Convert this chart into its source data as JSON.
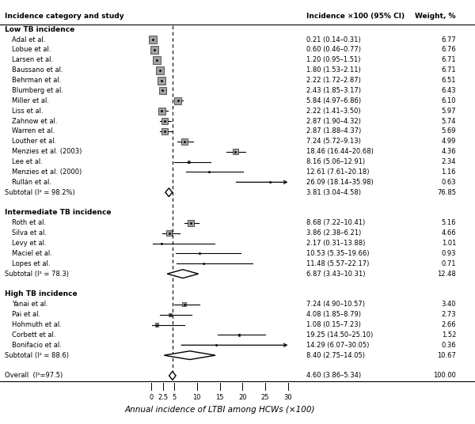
{
  "title_left": "Incidence category and study",
  "title_right1": "Incidence ×100 (95% CI)",
  "title_right2": "Weight, %",
  "xlabel": "Annual incidence of LTBI among HCWs (×100)",
  "dashed_line_x": 4.6,
  "xlim": [
    -2,
    32
  ],
  "xtick_positions": [
    0,
    2.5,
    5,
    10,
    15,
    20,
    25,
    30
  ],
  "xtick_labels": [
    "0",
    "2.5",
    "5",
    "10",
    "15",
    "20",
    "25",
    "30"
  ],
  "groups": [
    {
      "label": "Low TB incidence",
      "studies": [
        {
          "name": "Adal et al.",
          "est": 0.21,
          "lo": 0.14,
          "hi": 0.31,
          "weight": 6.77,
          "ci_str": "0.21 (0.14–0.31)",
          "w_str": "6.77",
          "is_subtotal": false,
          "arrow": false
        },
        {
          "name": "Lobue et al.",
          "est": 0.6,
          "lo": 0.46,
          "hi": 0.77,
          "weight": 6.76,
          "ci_str": "0.60 (0.46–0.77)",
          "w_str": "6.76",
          "is_subtotal": false,
          "arrow": false
        },
        {
          "name": "Larsen et al.",
          "est": 1.2,
          "lo": 0.95,
          "hi": 1.51,
          "weight": 6.71,
          "ci_str": "1.20 (0.95–1.51)",
          "w_str": "6.71",
          "is_subtotal": false,
          "arrow": false
        },
        {
          "name": "Baussano et al.",
          "est": 1.8,
          "lo": 1.53,
          "hi": 2.11,
          "weight": 6.71,
          "ci_str": "1.80 (1.53–2.11)",
          "w_str": "6.71",
          "is_subtotal": false,
          "arrow": false
        },
        {
          "name": "Behrman et al.",
          "est": 2.22,
          "lo": 1.72,
          "hi": 2.87,
          "weight": 6.51,
          "ci_str": "2.22 (1.72–2.87)",
          "w_str": "6.51",
          "is_subtotal": false,
          "arrow": false
        },
        {
          "name": "Blumberg et al.",
          "est": 2.43,
          "lo": 1.85,
          "hi": 3.17,
          "weight": 6.43,
          "ci_str": "2.43 (1.85–3.17)",
          "w_str": "6.43",
          "is_subtotal": false,
          "arrow": false
        },
        {
          "name": "Miller et al.",
          "est": 5.84,
          "lo": 4.97,
          "hi": 6.86,
          "weight": 6.1,
          "ci_str": "5.84 (4.97–6.86)",
          "w_str": "6.10",
          "is_subtotal": false,
          "arrow": false
        },
        {
          "name": "Liss et al.",
          "est": 2.22,
          "lo": 1.41,
          "hi": 3.5,
          "weight": 5.97,
          "ci_str": "2.22 (1.41–3.50)",
          "w_str": "5.97",
          "is_subtotal": false,
          "arrow": false
        },
        {
          "name": "Zahnow et al.",
          "est": 2.87,
          "lo": 1.9,
          "hi": 4.32,
          "weight": 5.74,
          "ci_str": "2.87 (1.90–4.32)",
          "w_str": "5.74",
          "is_subtotal": false,
          "arrow": false
        },
        {
          "name": "Warren et al.",
          "est": 2.87,
          "lo": 1.88,
          "hi": 4.37,
          "weight": 5.69,
          "ci_str": "2.87 (1.88–4.37)",
          "w_str": "5.69",
          "is_subtotal": false,
          "arrow": false
        },
        {
          "name": "Louther et al.",
          "est": 7.24,
          "lo": 5.72,
          "hi": 9.13,
          "weight": 4.99,
          "ci_str": "7.24 (5.72–9.13)",
          "w_str": "4.99",
          "is_subtotal": false,
          "arrow": false
        },
        {
          "name": "Menzies et al. (2003)",
          "est": 18.46,
          "lo": 16.44,
          "hi": 20.68,
          "weight": 4.36,
          "ci_str": "18.46 (16.44–20.68)",
          "w_str": "4.36",
          "is_subtotal": false,
          "arrow": false
        },
        {
          "name": "Lee et al.",
          "est": 8.16,
          "lo": 5.06,
          "hi": 12.91,
          "weight": 2.34,
          "ci_str": "8.16 (5.06–12.91)",
          "w_str": "2.34",
          "is_subtotal": false,
          "arrow": false
        },
        {
          "name": "Menzies et al. (2000)",
          "est": 12.61,
          "lo": 7.61,
          "hi": 20.18,
          "weight": 1.16,
          "ci_str": "12.61 (7.61–20.18)",
          "w_str": "1.16",
          "is_subtotal": false,
          "arrow": false
        },
        {
          "name": "Rullán et al.",
          "est": 26.09,
          "lo": 18.14,
          "hi": 35.98,
          "weight": 0.63,
          "ci_str": "26.09 (18.14–35.98)",
          "w_str": "0.63",
          "is_subtotal": false,
          "arrow": true
        },
        {
          "name": "Subtotal (I² = 98.2%)",
          "est": 3.81,
          "lo": 3.04,
          "hi": 4.58,
          "weight": 76.85,
          "ci_str": "3.81 (3.04–4.58)",
          "w_str": "76.85",
          "is_subtotal": true,
          "arrow": false
        }
      ]
    },
    {
      "label": "Intermediate TB incidence",
      "studies": [
        {
          "name": "Roth et al.",
          "est": 8.68,
          "lo": 7.22,
          "hi": 10.41,
          "weight": 5.16,
          "ci_str": "8.68 (7.22–10.41)",
          "w_str": "5.16",
          "is_subtotal": false,
          "arrow": false
        },
        {
          "name": "Silva et al.",
          "est": 3.86,
          "lo": 2.38,
          "hi": 6.21,
          "weight": 4.66,
          "ci_str": "3.86 (2.38–6.21)",
          "w_str": "4.66",
          "is_subtotal": false,
          "arrow": false
        },
        {
          "name": "Levy et al.",
          "est": 2.17,
          "lo": 0.31,
          "hi": 13.88,
          "weight": 1.01,
          "ci_str": "2.17 (0.31–13.88)",
          "w_str": "1.01",
          "is_subtotal": false,
          "arrow": false
        },
        {
          "name": "Maciel et al.",
          "est": 10.53,
          "lo": 5.35,
          "hi": 19.66,
          "weight": 0.93,
          "ci_str": "10.53 (5.35–19.66)",
          "w_str": "0.93",
          "is_subtotal": false,
          "arrow": false
        },
        {
          "name": "Lopes et al.",
          "est": 11.48,
          "lo": 5.57,
          "hi": 22.17,
          "weight": 0.71,
          "ci_str": "11.48 (5.57–22.17)",
          "w_str": "0.71",
          "is_subtotal": false,
          "arrow": false
        },
        {
          "name": "Subtotal (I² = 78.3)",
          "est": 6.87,
          "lo": 3.43,
          "hi": 10.31,
          "weight": 12.48,
          "ci_str": "6.87 (3.43–10.31)",
          "w_str": "12.48",
          "is_subtotal": true,
          "arrow": false
        }
      ]
    },
    {
      "label": "High TB incidence",
      "studies": [
        {
          "name": "Yanai et al.",
          "est": 7.24,
          "lo": 4.9,
          "hi": 10.57,
          "weight": 3.4,
          "ci_str": "7.24 (4.90–10.57)",
          "w_str": "3.40",
          "is_subtotal": false,
          "arrow": false
        },
        {
          "name": "Pai et al.",
          "est": 4.08,
          "lo": 1.85,
          "hi": 8.79,
          "weight": 2.73,
          "ci_str": "4.08 (1.85–8.79)",
          "w_str": "2.73",
          "is_subtotal": false,
          "arrow": false
        },
        {
          "name": "Hohmuth et al.",
          "est": 1.08,
          "lo": 0.15,
          "hi": 7.23,
          "weight": 2.66,
          "ci_str": "1.08 (0.15–7.23)",
          "w_str": "2.66",
          "is_subtotal": false,
          "arrow": false
        },
        {
          "name": "Corbett et al.",
          "est": 19.25,
          "lo": 14.5,
          "hi": 25.1,
          "weight": 1.52,
          "ci_str": "19.25 (14.50–25.10)",
          "w_str": "1.52",
          "is_subtotal": false,
          "arrow": false
        },
        {
          "name": "Bonifacio et al.",
          "est": 14.29,
          "lo": 6.07,
          "hi": 30.05,
          "weight": 0.36,
          "ci_str": "14.29 (6.07–30.05)",
          "w_str": "0.36",
          "is_subtotal": false,
          "arrow": true
        },
        {
          "name": "Subtotal (I² = 88.6)",
          "est": 8.4,
          "lo": 2.75,
          "hi": 14.05,
          "weight": 10.67,
          "ci_str": "8.40 (2.75–14.05)",
          "w_str": "10.67",
          "is_subtotal": true,
          "arrow": false
        }
      ]
    }
  ],
  "overall": {
    "name": "Overall  (I²=97.5)",
    "est": 4.6,
    "lo": 3.86,
    "hi": 5.34,
    "ci_str": "4.60 (3.86–5.34)",
    "w_str": "100.00"
  },
  "arrow_limit": 30.5,
  "max_weight": 6.77,
  "box_color": "#a0a0a0",
  "diamond_color": "#000000",
  "text_color": "#000000",
  "bg_color": "#ffffff"
}
